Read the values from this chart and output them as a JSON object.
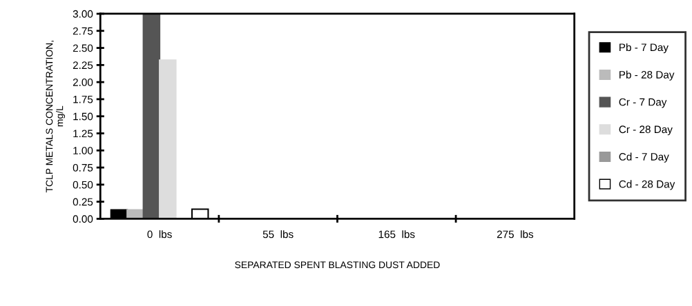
{
  "chart_data": {
    "type": "bar",
    "xlabel": "SEPARATED SPENT BLASTING DUST ADDED",
    "ylabel": "TCLP METALS CONCENTRATION,\nmg/L",
    "categories": [
      "0  lbs",
      "55  lbs",
      "165  lbs",
      "275  lbs"
    ],
    "series": [
      {
        "name": "Pb - 7 Day",
        "color": "#000000",
        "values": [
          0.13,
          0,
          0,
          0
        ]
      },
      {
        "name": "Pb - 28 Day",
        "color": "#bbbbbb",
        "values": [
          0.13,
          0,
          0,
          0
        ]
      },
      {
        "name": "Cr - 7 Day",
        "color": "#555555",
        "values": [
          3.0,
          0,
          0,
          0
        ]
      },
      {
        "name": "Cr - 28 Day",
        "color": "#dddddd",
        "values": [
          2.32,
          0,
          0,
          0
        ]
      },
      {
        "name": "Cd - 7 Day",
        "color": "#999999",
        "values": [
          0,
          0,
          0,
          0
        ]
      },
      {
        "name": "Cd - 28 Day",
        "color": "#ffffff",
        "values": [
          0.14,
          0,
          0,
          0
        ]
      }
    ],
    "ylim": [
      0,
      3.0
    ],
    "yticks": [
      {
        "value": 0,
        "label": "0.00"
      },
      {
        "value": 0.25,
        "label": "0.25"
      },
      {
        "value": 0.5,
        "label": "0.50"
      },
      {
        "value": 0.75,
        "label": "0.75"
      },
      {
        "value": 1.0,
        "label": "1.00"
      },
      {
        "value": 1.25,
        "label": "1.25"
      },
      {
        "value": 1.5,
        "label": "1.50"
      },
      {
        "value": 1.75,
        "label": "1.75"
      },
      {
        "value": 2.0,
        "label": "2.00"
      },
      {
        "value": 2.25,
        "label": "2.25"
      },
      {
        "value": 2.5,
        "label": "2.50"
      },
      {
        "value": 2.75,
        "label": "2.75"
      },
      {
        "value": 3.0,
        "label": "3.00"
      }
    ],
    "grid": false,
    "legend": "right"
  }
}
